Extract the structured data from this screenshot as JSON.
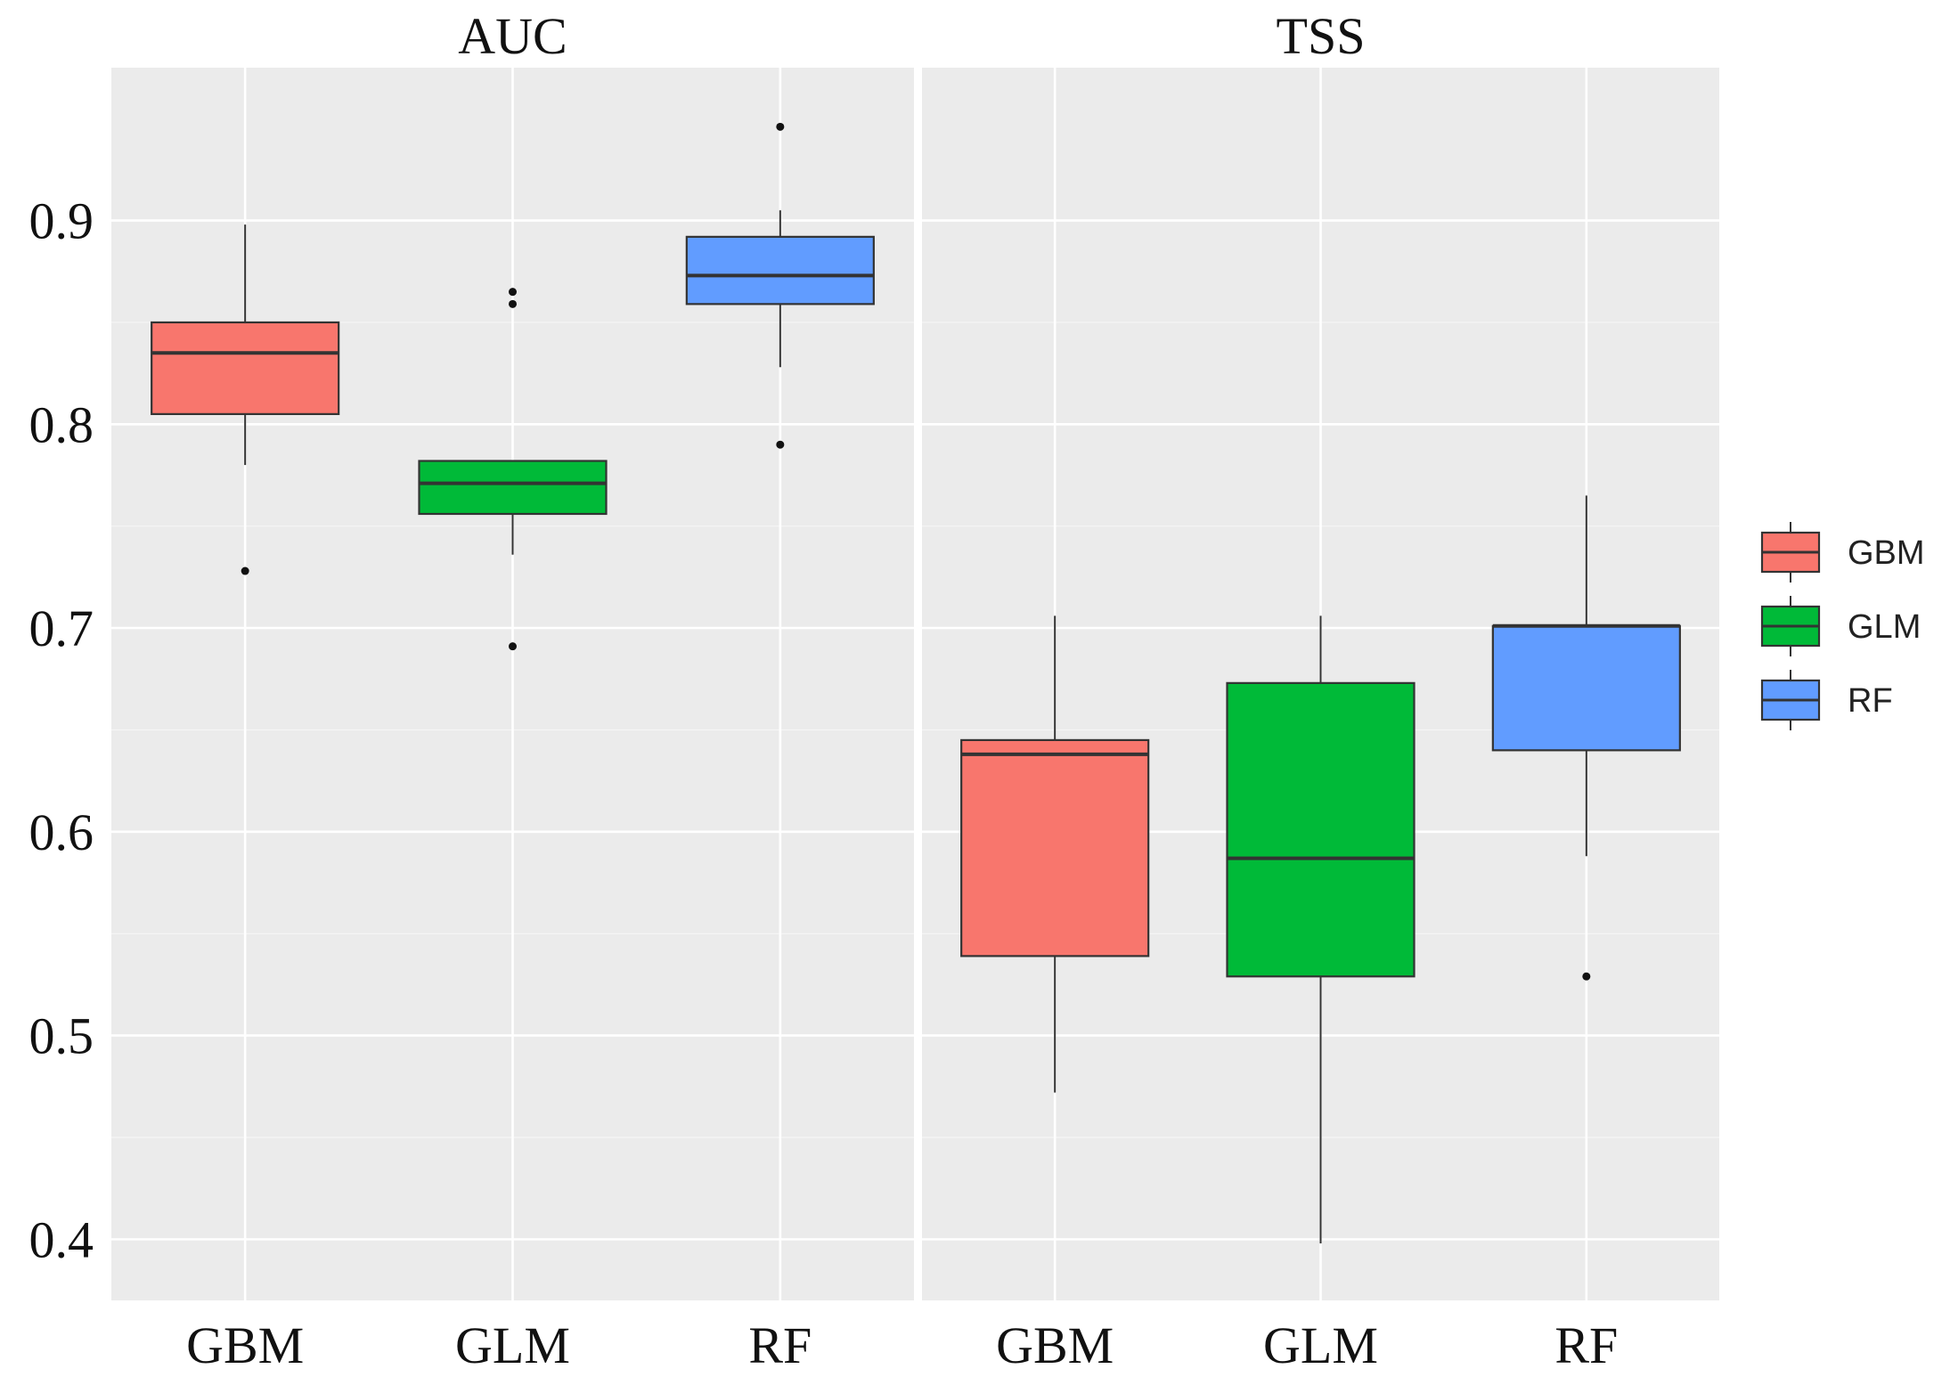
{
  "chart_data": {
    "type": "boxplot",
    "facets": [
      {
        "title": "AUC",
        "categories": [
          "GBM",
          "GLM",
          "RF"
        ],
        "boxes": [
          {
            "name": "GBM",
            "whisker_low": 0.78,
            "q1": 0.805,
            "median": 0.835,
            "q3": 0.85,
            "whisker_high": 0.898,
            "outliers": [
              0.728
            ]
          },
          {
            "name": "GLM",
            "whisker_low": 0.736,
            "q1": 0.756,
            "median": 0.771,
            "q3": 0.782,
            "whisker_high": 0.782,
            "outliers": [
              0.691,
              0.859,
              0.865
            ]
          },
          {
            "name": "RF",
            "whisker_low": 0.828,
            "q1": 0.859,
            "median": 0.873,
            "q3": 0.892,
            "whisker_high": 0.905,
            "outliers": [
              0.79,
              0.946
            ]
          }
        ]
      },
      {
        "title": "TSS",
        "categories": [
          "GBM",
          "GLM",
          "RF"
        ],
        "boxes": [
          {
            "name": "GBM",
            "whisker_low": 0.472,
            "q1": 0.539,
            "median": 0.638,
            "q3": 0.645,
            "whisker_high": 0.706,
            "outliers": []
          },
          {
            "name": "GLM",
            "whisker_low": 0.398,
            "q1": 0.529,
            "median": 0.587,
            "q3": 0.673,
            "whisker_high": 0.706,
            "outliers": []
          },
          {
            "name": "RF",
            "whisker_low": 0.588,
            "q1": 0.64,
            "median": 0.701,
            "q3": 0.701,
            "whisker_high": 0.765,
            "outliers": [
              0.529
            ]
          }
        ]
      }
    ],
    "yticks": [
      "0.4",
      "0.5",
      "0.6",
      "0.7",
      "0.8",
      "0.9"
    ],
    "ylim": [
      0.37,
      0.975
    ],
    "xlabel": "",
    "ylabel": "",
    "legend": {
      "position": "right",
      "entries": [
        {
          "label": "GBM",
          "color": "#F8766D"
        },
        {
          "label": "GLM",
          "color": "#00BA38"
        },
        {
          "label": "RF",
          "color": "#619CFF"
        }
      ]
    },
    "colors": {
      "GBM": "#F8766D",
      "GLM": "#00BA38",
      "RF": "#619CFF"
    }
  }
}
